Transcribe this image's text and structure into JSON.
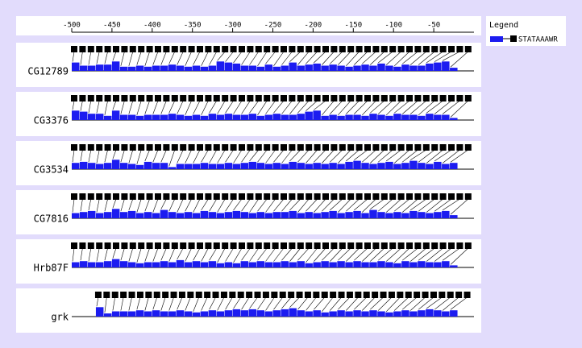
{
  "chart_data": {
    "type": "motif",
    "legend_title": "Legend",
    "motif": {
      "name": "STATAAAWR",
      "color": "#1c1cf0"
    },
    "xlim": [
      -500,
      0
    ],
    "xticks": [
      -500,
      -450,
      -400,
      -350,
      -300,
      -250,
      -200,
      -150,
      -100,
      -50
    ],
    "ylim": [
      0,
      10
    ],
    "rows": [
      {
        "name": "CG12789",
        "x": [
          -500,
          -490,
          -480,
          -470,
          -460,
          -450,
          -440,
          -430,
          -420,
          -410,
          -400,
          -390,
          -380,
          -370,
          -360,
          -350,
          -340,
          -330,
          -320,
          -310,
          -300,
          -290,
          -280,
          -270,
          -260,
          -250,
          -240,
          -230,
          -220,
          -210,
          -200,
          -190,
          -180,
          -170,
          -160,
          -150,
          -140,
          -130,
          -120,
          -110,
          -100,
          -90,
          -80,
          -70,
          -60,
          -50,
          -40,
          -30
        ],
        "values": [
          8,
          5,
          5,
          6,
          6,
          9,
          4,
          4,
          5,
          4,
          5,
          5,
          6,
          5,
          4,
          5,
          4,
          5,
          9,
          8,
          7,
          5,
          5,
          4,
          6,
          4,
          5,
          8,
          5,
          6,
          7,
          5,
          6,
          5,
          4,
          5,
          6,
          5,
          7,
          5,
          4,
          6,
          5,
          5,
          7,
          8,
          9,
          3
        ]
      },
      {
        "name": "CG3376",
        "x": [
          -500,
          -490,
          -480,
          -470,
          -460,
          -450,
          -440,
          -430,
          -420,
          -410,
          -400,
          -390,
          -380,
          -370,
          -360,
          -350,
          -340,
          -330,
          -320,
          -310,
          -300,
          -290,
          -280,
          -270,
          -260,
          -250,
          -240,
          -230,
          -220,
          -210,
          -200,
          -190,
          -180,
          -170,
          -160,
          -150,
          -140,
          -130,
          -120,
          -110,
          -100,
          -90,
          -80,
          -70,
          -60,
          -50,
          -40,
          -30
        ],
        "values": [
          9,
          8,
          6,
          6,
          4,
          9,
          5,
          5,
          4,
          5,
          5,
          5,
          6,
          5,
          4,
          5,
          4,
          6,
          5,
          6,
          5,
          5,
          6,
          4,
          5,
          6,
          5,
          5,
          6,
          8,
          9,
          4,
          5,
          4,
          5,
          5,
          4,
          6,
          5,
          4,
          6,
          5,
          5,
          4,
          6,
          5,
          5,
          2
        ]
      },
      {
        "name": "CG3534",
        "x": [
          -500,
          -490,
          -480,
          -470,
          -460,
          -450,
          -440,
          -430,
          -420,
          -410,
          -400,
          -390,
          -380,
          -370,
          -360,
          -350,
          -340,
          -330,
          -320,
          -310,
          -300,
          -290,
          -280,
          -270,
          -260,
          -250,
          -240,
          -230,
          -220,
          -210,
          -200,
          -190,
          -180,
          -170,
          -160,
          -150,
          -140,
          -130,
          -120,
          -110,
          -100,
          -90,
          -80,
          -70,
          -60,
          -50,
          -40,
          -30
        ],
        "values": [
          6,
          7,
          6,
          5,
          6,
          9,
          6,
          5,
          4,
          7,
          6,
          6,
          2,
          5,
          5,
          5,
          6,
          5,
          5,
          6,
          5,
          6,
          7,
          6,
          5,
          6,
          5,
          7,
          6,
          5,
          6,
          5,
          6,
          5,
          7,
          8,
          6,
          5,
          6,
          7,
          5,
          6,
          8,
          6,
          5,
          7,
          5,
          6
        ]
      },
      {
        "name": "CG7816",
        "x": [
          -500,
          -490,
          -480,
          -470,
          -460,
          -450,
          -440,
          -430,
          -420,
          -410,
          -400,
          -390,
          -380,
          -370,
          -360,
          -350,
          -340,
          -330,
          -320,
          -310,
          -300,
          -290,
          -280,
          -270,
          -260,
          -250,
          -240,
          -230,
          -220,
          -210,
          -200,
          -190,
          -180,
          -170,
          -160,
          -150,
          -140,
          -130,
          -120,
          -110,
          -100,
          -90,
          -80,
          -70,
          -60,
          -50,
          -40,
          -30
        ],
        "values": [
          5,
          6,
          7,
          5,
          6,
          9,
          6,
          7,
          5,
          6,
          5,
          8,
          6,
          5,
          6,
          5,
          7,
          6,
          5,
          6,
          7,
          6,
          5,
          6,
          5,
          6,
          6,
          7,
          5,
          6,
          5,
          6,
          7,
          5,
          6,
          7,
          5,
          8,
          6,
          5,
          6,
          5,
          7,
          6,
          5,
          6,
          7,
          3
        ]
      },
      {
        "name": "Hrb87F",
        "x": [
          -500,
          -490,
          -480,
          -470,
          -460,
          -450,
          -440,
          -430,
          -420,
          -410,
          -400,
          -390,
          -380,
          -370,
          -360,
          -350,
          -340,
          -330,
          -320,
          -310,
          -300,
          -290,
          -280,
          -270,
          -260,
          -250,
          -240,
          -230,
          -220,
          -210,
          -200,
          -190,
          -180,
          -170,
          -160,
          -150,
          -140,
          -130,
          -120,
          -110,
          -100,
          -90,
          -80,
          -70,
          -60,
          -50,
          -40,
          -30
        ],
        "values": [
          5,
          6,
          5,
          5,
          6,
          8,
          6,
          5,
          4,
          5,
          5,
          6,
          5,
          7,
          5,
          6,
          5,
          6,
          4,
          5,
          4,
          6,
          5,
          6,
          5,
          5,
          6,
          5,
          6,
          4,
          5,
          6,
          5,
          6,
          5,
          6,
          5,
          5,
          6,
          5,
          4,
          6,
          5,
          6,
          5,
          5,
          6,
          2
        ]
      },
      {
        "name": "grk",
        "x": [
          -470,
          -460,
          -450,
          -440,
          -430,
          -420,
          -410,
          -400,
          -390,
          -380,
          -370,
          -360,
          -350,
          -340,
          -330,
          -320,
          -310,
          -300,
          -290,
          -280,
          -270,
          -260,
          -250,
          -240,
          -230,
          -220,
          -210,
          -200,
          -190,
          -180,
          -170,
          -160,
          -150,
          -140,
          -130,
          -120,
          -110,
          -100,
          -90,
          -80,
          -70,
          -60,
          -50,
          -40,
          -30
        ],
        "values": [
          9,
          3,
          5,
          5,
          5,
          6,
          5,
          6,
          5,
          5,
          6,
          5,
          4,
          5,
          6,
          5,
          6,
          7,
          6,
          7,
          6,
          5,
          6,
          7,
          8,
          6,
          5,
          6,
          4,
          5,
          6,
          5,
          6,
          5,
          6,
          5,
          4,
          5,
          6,
          5,
          6,
          7,
          6,
          5,
          6
        ]
      }
    ]
  }
}
